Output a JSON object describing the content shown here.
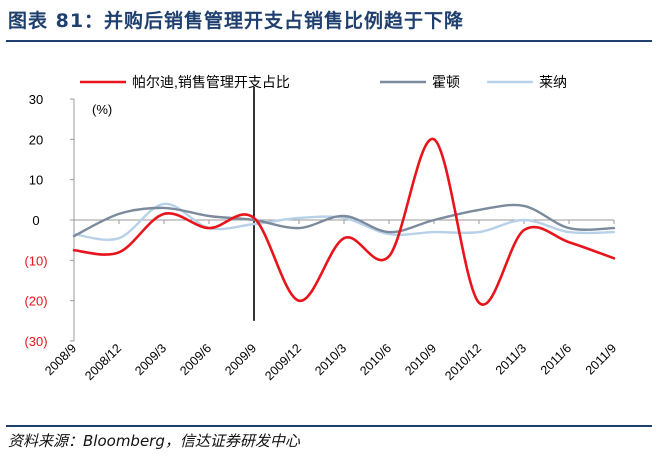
{
  "header": {
    "title": "图表 81：并购后销售管理开支占销售比例趋于下降"
  },
  "footer": {
    "source": "资料来源：Bloomberg，信达证券研发中心"
  },
  "chart_data": {
    "type": "line",
    "unit_label": "(%)",
    "ylim": [
      -30,
      30
    ],
    "yticks": [
      30,
      20,
      10,
      0,
      -10,
      -20,
      -30
    ],
    "ytick_labels": [
      "30",
      "20",
      "10",
      "0",
      "(10)",
      "(20)",
      "(30)"
    ],
    "negative_tick_color": "#e8141b",
    "categories": [
      "2008/9",
      "2008/12",
      "2009/3",
      "2009/6",
      "2009/9",
      "2009/12",
      "2010/3",
      "2010/6",
      "2010/9",
      "2010/12",
      "2011/3",
      "2011/6",
      "2011/9"
    ],
    "marker_line_at": "2009/9",
    "legend_position": "top",
    "series": [
      {
        "name": "帕尔迪,销售管理开支占比",
        "color": "#e8141b",
        "width": 2.6,
        "values": [
          -7.5,
          -8,
          1.5,
          -2,
          0.5,
          -20,
          -4.5,
          -9,
          20,
          -20.5,
          -2.5,
          -5.5,
          -9.5
        ]
      },
      {
        "name": "霍顿",
        "color": "#7b8a9c",
        "width": 2.4,
        "values": [
          -4,
          1.5,
          3,
          1,
          0,
          -2,
          1,
          -3,
          0,
          2.5,
          3.5,
          -2,
          -2
        ]
      },
      {
        "name": "莱纳",
        "color": "#b7d1e8",
        "width": 2.4,
        "values": [
          -3.5,
          -4.5,
          4,
          -2,
          -1,
          0.5,
          0.5,
          -3.5,
          -3,
          -3,
          0,
          -3,
          -3
        ]
      }
    ]
  }
}
